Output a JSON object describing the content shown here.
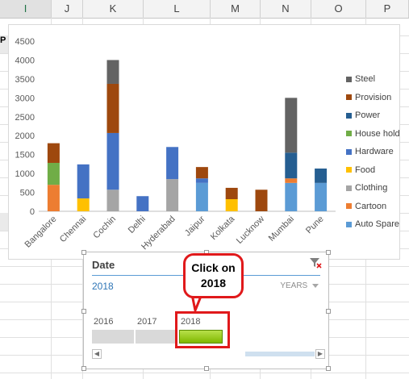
{
  "columns": [
    "I",
    "J",
    "K",
    "L",
    "M",
    "N",
    "O",
    "P"
  ],
  "selected_column": "I",
  "cell_fragment": "P",
  "chart_data": {
    "type": "bar",
    "stacked": true,
    "categories": [
      "Bangalore",
      "Chennai",
      "Cochin",
      "Delhi",
      "Hyderabad",
      "Jaipur",
      "Kolkata",
      "Lucknow",
      "Mumbai",
      "Pune"
    ],
    "ylim": [
      0,
      4500
    ],
    "yticks": [
      "0",
      "500",
      "1000",
      "1500",
      "2000",
      "2500",
      "3000",
      "3500",
      "4000",
      "4500"
    ],
    "series": [
      {
        "name": "Auto Spare",
        "color": "#5b9bd5",
        "values": [
          0,
          0,
          0,
          0,
          0,
          750,
          0,
          0,
          750,
          750
        ]
      },
      {
        "name": "Cartoon",
        "color": "#ed7d31",
        "values": [
          700,
          0,
          0,
          0,
          0,
          0,
          0,
          0,
          120,
          0
        ]
      },
      {
        "name": "Clothing",
        "color": "#a5a5a5",
        "values": [
          0,
          0,
          570,
          0,
          850,
          0,
          0,
          0,
          0,
          0
        ]
      },
      {
        "name": "Food",
        "color": "#ffc000",
        "values": [
          0,
          340,
          0,
          0,
          0,
          0,
          320,
          0,
          0,
          0
        ]
      },
      {
        "name": "Hardware",
        "color": "#4472c4",
        "values": [
          0,
          900,
          1500,
          400,
          850,
          120,
          0,
          0,
          0,
          0
        ]
      },
      {
        "name": "House hold",
        "color": "#70ad47",
        "values": [
          580,
          0,
          0,
          0,
          0,
          0,
          0,
          0,
          0,
          0
        ]
      },
      {
        "name": "Power",
        "color": "#255e91",
        "values": [
          0,
          0,
          0,
          0,
          0,
          0,
          0,
          0,
          680,
          380
        ]
      },
      {
        "name": "Provision",
        "color": "#9e480e",
        "values": [
          520,
          0,
          1300,
          0,
          0,
          300,
          300,
          570,
          0,
          0
        ]
      },
      {
        "name": "Steel",
        "color": "#636363",
        "values": [
          0,
          0,
          630,
          0,
          0,
          0,
          0,
          0,
          1450,
          0
        ]
      }
    ],
    "legend_order": [
      "Steel",
      "Provision",
      "Power",
      "House hold",
      "Hardware",
      "Food",
      "Clothing",
      "Cartoon",
      "Auto Spare"
    ],
    "legend_position": "right"
  },
  "slicer": {
    "title": "Date",
    "selection": "2018",
    "level": "YEARS",
    "years": [
      {
        "label": "2016",
        "selected": false
      },
      {
        "label": "2017",
        "selected": false
      },
      {
        "label": "2018",
        "selected": true
      }
    ],
    "scroll_left": "◀",
    "scroll_right": "▶"
  },
  "callout": {
    "line1": "Click on",
    "line2": "2018"
  },
  "colors": {
    "highlight": "#e0191b",
    "selected_bar": "#8fc31f"
  }
}
